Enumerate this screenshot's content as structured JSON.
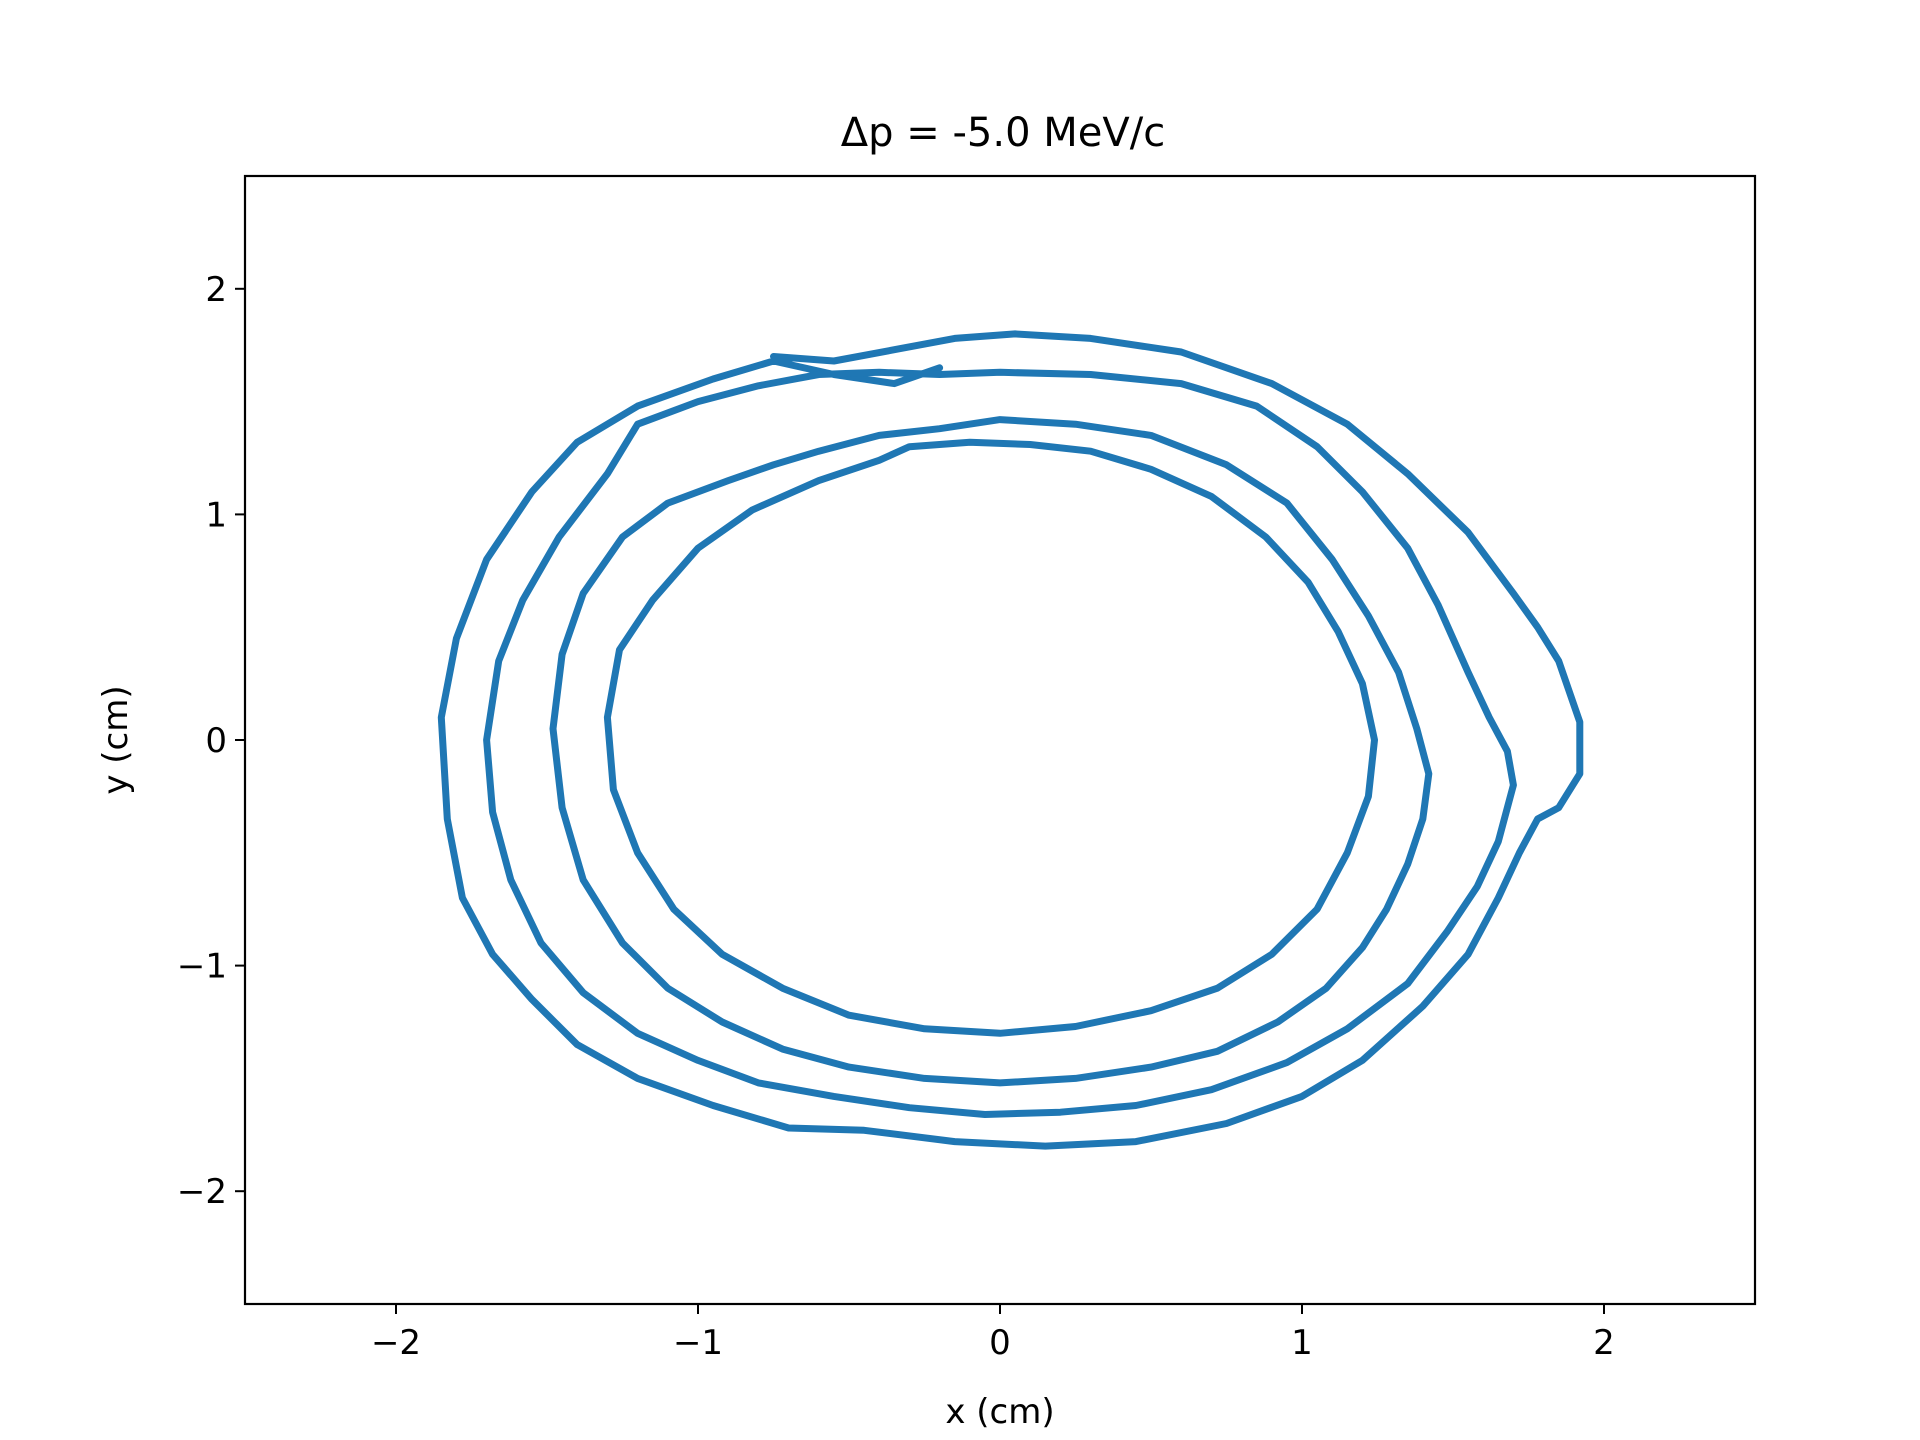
{
  "chart_data": {
    "type": "line",
    "title": "Δp = -5.0 MeV/c",
    "xlabel": "x (cm)",
    "ylabel": "y (cm)",
    "xlim": [
      -2.5,
      2.5
    ],
    "ylim": [
      -2.5,
      2.5
    ],
    "xticks": [
      -2,
      -1,
      0,
      1,
      2
    ],
    "yticks": [
      -2,
      -1,
      0,
      1,
      2
    ],
    "xtick_labels": [
      "−2",
      "−1",
      "0",
      "1",
      "2"
    ],
    "ytick_labels": [
      "−2",
      "−1",
      "0",
      "1",
      "2"
    ],
    "grid": false,
    "legend": false,
    "series": [
      {
        "color": "#1f77b4",
        "x": [
          -0.75,
          -0.55,
          -0.35,
          -0.15,
          0.05,
          0.3,
          0.6,
          0.9,
          1.15,
          1.35,
          1.55,
          1.7,
          1.78,
          1.85,
          1.92,
          1.92,
          1.85,
          1.78,
          1.72,
          1.65,
          1.55,
          1.4,
          1.2,
          1.0,
          0.75,
          0.45,
          0.15,
          -0.15,
          -0.45,
          -0.7,
          -0.95,
          -1.2,
          -1.4,
          -1.55,
          -1.68,
          -1.78,
          -1.83,
          -1.85,
          -1.8,
          -1.7,
          -1.55,
          -1.4,
          -1.2,
          -0.95,
          -0.75,
          -0.55,
          -0.35,
          -0.2
        ],
        "y": [
          1.7,
          1.68,
          1.73,
          1.78,
          1.8,
          1.78,
          1.72,
          1.58,
          1.4,
          1.18,
          0.92,
          0.65,
          0.5,
          0.35,
          0.08,
          -0.15,
          -0.3,
          -0.35,
          -0.5,
          -0.7,
          -0.95,
          -1.18,
          -1.42,
          -1.58,
          -1.7,
          -1.78,
          -1.8,
          -1.78,
          -1.73,
          -1.72,
          -1.62,
          -1.5,
          -1.35,
          -1.15,
          -0.95,
          -0.7,
          -0.35,
          0.1,
          0.45,
          0.8,
          1.1,
          1.32,
          1.48,
          1.6,
          1.68,
          1.62,
          1.58,
          1.65
        ]
      },
      {
        "color": "#1f77b4",
        "x": [
          -1.2,
          -1.0,
          -0.8,
          -0.6,
          -0.4,
          -0.2,
          0.0,
          0.3,
          0.6,
          0.85,
          1.05,
          1.2,
          1.35,
          1.45,
          1.55,
          1.62,
          1.68,
          1.7,
          1.65,
          1.58,
          1.48,
          1.35,
          1.15,
          0.95,
          0.7,
          0.45,
          0.2,
          -0.05,
          -0.3,
          -0.55,
          -0.8,
          -1.0,
          -1.2,
          -1.38,
          -1.52,
          -1.62,
          -1.68,
          -1.7,
          -1.66,
          -1.58,
          -1.46,
          -1.3,
          -1.2
        ],
        "y": [
          1.4,
          1.5,
          1.57,
          1.62,
          1.63,
          1.62,
          1.63,
          1.62,
          1.58,
          1.48,
          1.3,
          1.1,
          0.85,
          0.6,
          0.3,
          0.1,
          -0.05,
          -0.2,
          -0.45,
          -0.65,
          -0.85,
          -1.08,
          -1.28,
          -1.43,
          -1.55,
          -1.62,
          -1.65,
          -1.66,
          -1.63,
          -1.58,
          -1.52,
          -1.42,
          -1.3,
          -1.12,
          -0.9,
          -0.62,
          -0.32,
          0.0,
          0.35,
          0.62,
          0.9,
          1.18,
          1.4
        ]
      },
      {
        "color": "#1f77b4",
        "x": [
          -0.6,
          -0.4,
          -0.2,
          0.0,
          0.25,
          0.5,
          0.75,
          0.95,
          1.1,
          1.22,
          1.32,
          1.38,
          1.42,
          1.4,
          1.35,
          1.28,
          1.2,
          1.08,
          0.92,
          0.72,
          0.5,
          0.25,
          0.0,
          -0.25,
          -0.5,
          -0.72,
          -0.92,
          -1.1,
          -1.25,
          -1.38,
          -1.45,
          -1.48,
          -1.45,
          -1.38,
          -1.25,
          -1.1,
          -0.9,
          -0.75,
          -0.6
        ],
        "y": [
          1.28,
          1.35,
          1.38,
          1.42,
          1.4,
          1.35,
          1.22,
          1.05,
          0.8,
          0.55,
          0.3,
          0.05,
          -0.15,
          -0.35,
          -0.55,
          -0.75,
          -0.92,
          -1.1,
          -1.25,
          -1.38,
          -1.45,
          -1.5,
          -1.52,
          -1.5,
          -1.45,
          -1.37,
          -1.25,
          -1.1,
          -0.9,
          -0.62,
          -0.3,
          0.05,
          0.38,
          0.65,
          0.9,
          1.05,
          1.15,
          1.22,
          1.28
        ]
      },
      {
        "color": "#1f77b4",
        "x": [
          -0.3,
          -0.1,
          0.1,
          0.3,
          0.5,
          0.7,
          0.88,
          1.02,
          1.12,
          1.2,
          1.24,
          1.22,
          1.15,
          1.05,
          0.9,
          0.72,
          0.5,
          0.25,
          0.0,
          -0.25,
          -0.5,
          -0.72,
          -0.92,
          -1.08,
          -1.2,
          -1.28,
          -1.3,
          -1.26,
          -1.15,
          -1.0,
          -0.82,
          -0.6,
          -0.4,
          -0.3
        ],
        "y": [
          1.3,
          1.32,
          1.31,
          1.28,
          1.2,
          1.08,
          0.9,
          0.7,
          0.48,
          0.25,
          0.0,
          -0.25,
          -0.5,
          -0.75,
          -0.95,
          -1.1,
          -1.2,
          -1.27,
          -1.3,
          -1.28,
          -1.22,
          -1.1,
          -0.95,
          -0.75,
          -0.5,
          -0.22,
          0.1,
          0.4,
          0.62,
          0.85,
          1.02,
          1.15,
          1.24,
          1.3
        ]
      }
    ]
  }
}
